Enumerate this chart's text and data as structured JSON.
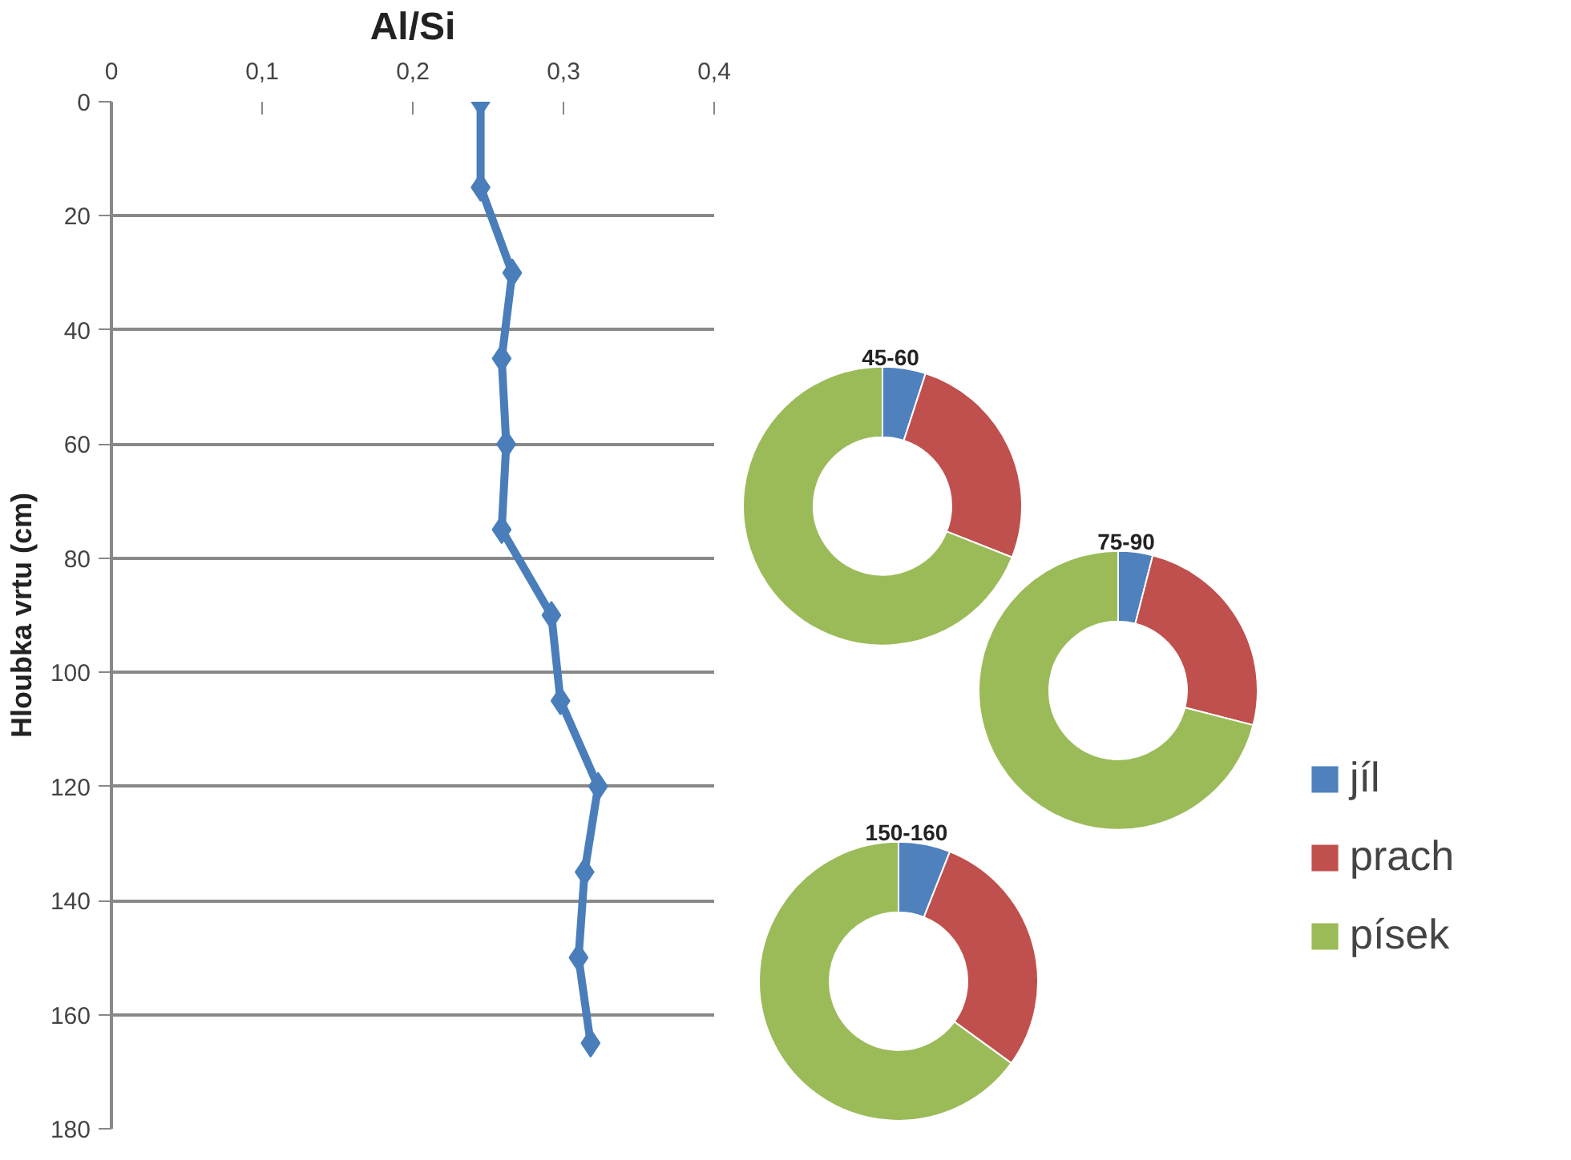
{
  "chart_data": [
    {
      "type": "line",
      "xlabel": "Al/Si",
      "ylabel": "Hloubka vrtu (cm)",
      "xlim": [
        0,
        0.4
      ],
      "xticks": [
        0,
        {
          "value": 0.1,
          "label": "0,1"
        },
        {
          "value": 0.2,
          "label": "0,2"
        },
        {
          "value": 0.3,
          "label": "0,3"
        },
        {
          "value": 0.4,
          "label": "0,4"
        }
      ],
      "ylim": [
        180,
        0
      ],
      "yticks": [
        0,
        20,
        40,
        60,
        80,
        100,
        120,
        140,
        160,
        180
      ],
      "grid": "y",
      "marker": "diamond",
      "series": [
        {
          "color": "#4a7ebb",
          "x": [
            0.245,
            0.245,
            0.266,
            0.259,
            0.262,
            0.259,
            0.292,
            0.298,
            0.323,
            0.314,
            0.31,
            0.318
          ],
          "values": [
            0,
            15,
            30,
            45,
            60,
            75,
            90,
            105,
            120,
            135,
            150,
            165
          ]
        }
      ]
    },
    {
      "type": "donut",
      "title": "45-60",
      "categories": [
        "jíl",
        "prach",
        "písek"
      ],
      "values": [
        5,
        26,
        69
      ],
      "colors": [
        "#4f81bd",
        "#c0504d",
        "#9bbb59"
      ],
      "legend": "right"
    },
    {
      "type": "donut",
      "title": "75-90",
      "categories": [
        null,
        null,
        null
      ],
      "values": [
        4,
        25,
        71
      ],
      "colors": [
        "#4f81bd",
        "#c0504d",
        "#9bbb59"
      ]
    },
    {
      "type": "donut",
      "title": "150-160",
      "categories": [
        null,
        null,
        null
      ],
      "values": [
        6,
        29,
        65
      ],
      "colors": [
        "#4f81bd",
        "#c0504d",
        "#9bbb59"
      ]
    }
  ]
}
